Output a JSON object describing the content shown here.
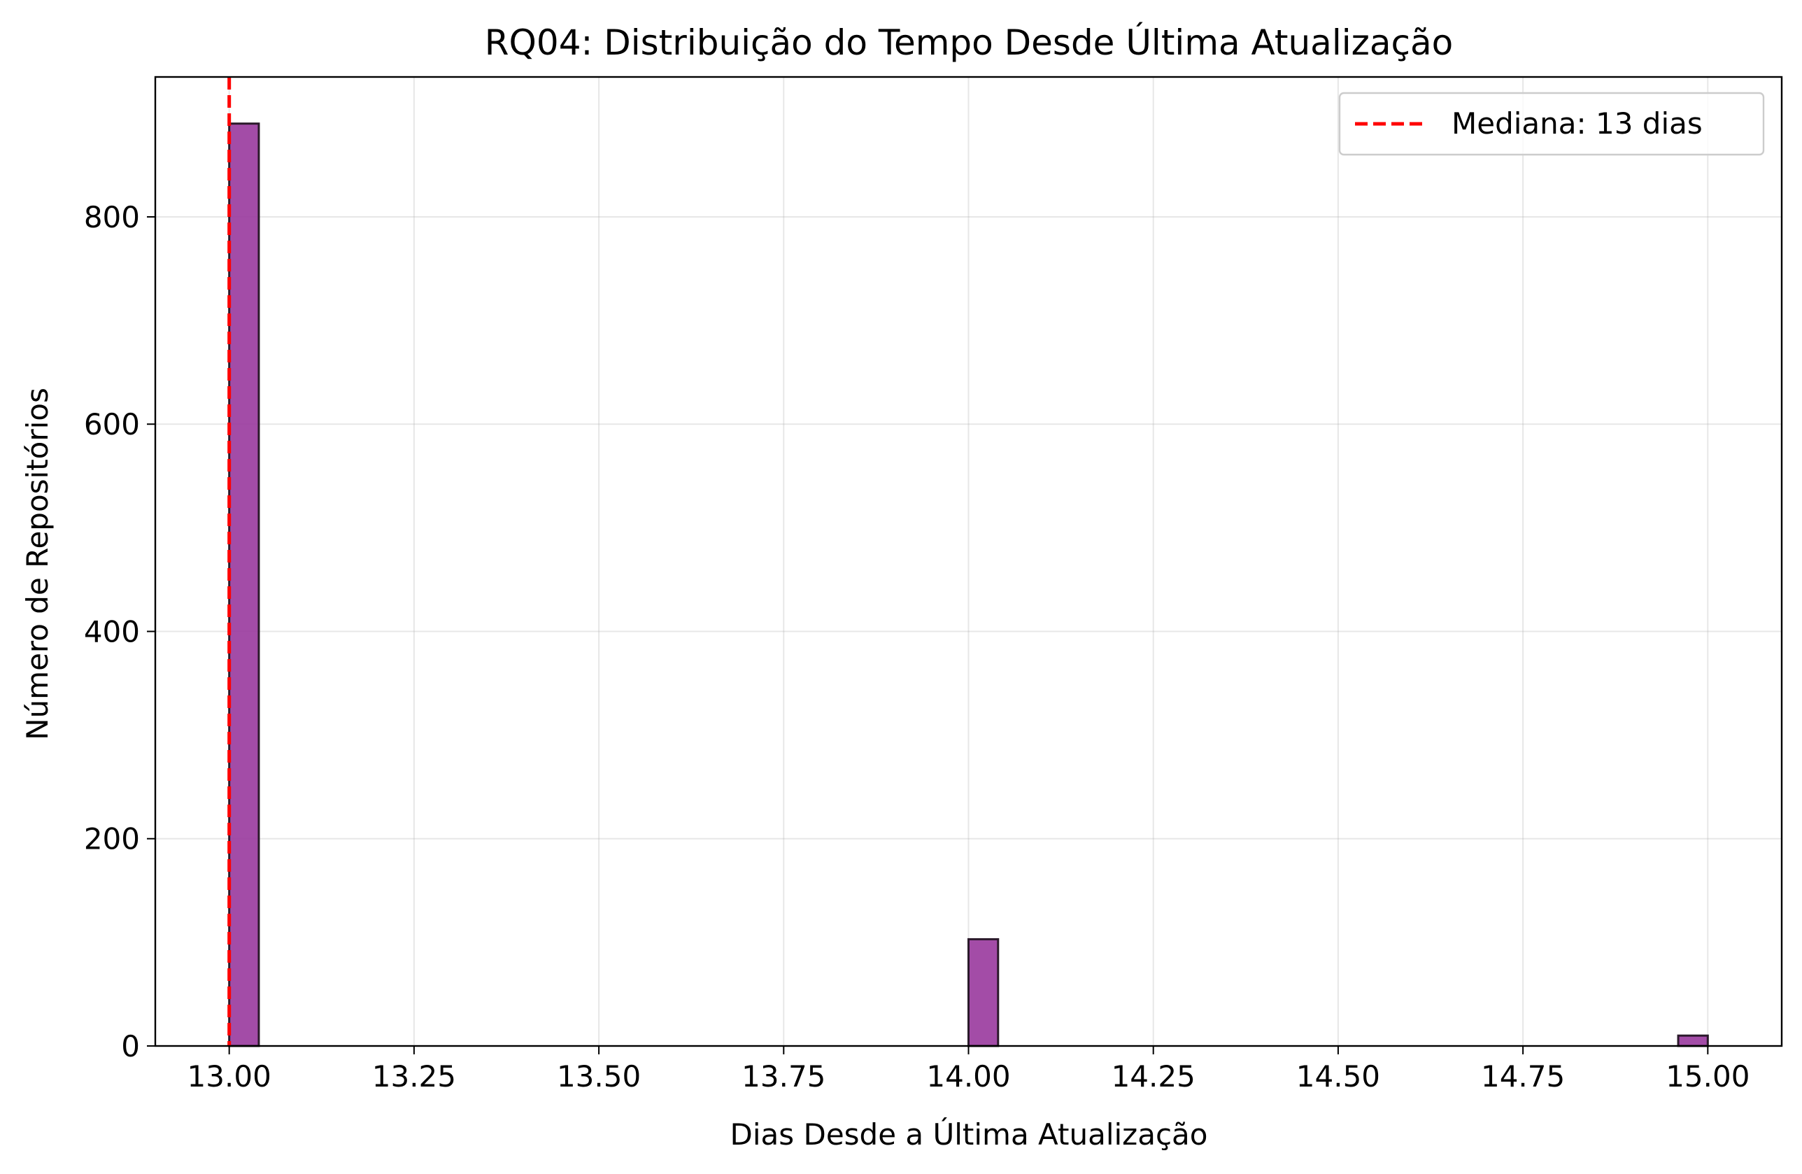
{
  "chart_data": {
    "type": "bar",
    "title": "RQ04: Distribuição do Tempo Desde Última Atualização",
    "xlabel": "Dias Desde a Última Atualização",
    "ylabel": "Número de Repositórios",
    "xlim": [
      12.9,
      15.1
    ],
    "ylim": [
      0,
      935
    ],
    "x_ticks": [
      13.0,
      13.25,
      13.5,
      13.75,
      14.0,
      14.25,
      14.5,
      14.75,
      15.0
    ],
    "x_tick_labels": [
      "13.00",
      "13.25",
      "13.50",
      "13.75",
      "14.00",
      "14.25",
      "14.50",
      "14.75",
      "15.00"
    ],
    "y_ticks": [
      0,
      200,
      400,
      600,
      800
    ],
    "y_tick_labels": [
      "0",
      "200",
      "400",
      "600",
      "800"
    ],
    "bin_width": 0.04,
    "bins": [
      {
        "x_start": 13.0,
        "x_end": 13.04,
        "count": 890
      },
      {
        "x_start": 14.0,
        "x_end": 14.04,
        "count": 103
      },
      {
        "x_start": 14.96,
        "x_end": 15.0,
        "count": 10
      }
    ],
    "median": {
      "value": 13,
      "label": "Mediana: 13 dias",
      "color": "#ff0000",
      "style": "dashed"
    },
    "bar_color": "#9b3d9f",
    "bar_edge_color": "#2b1a2b",
    "grid": true,
    "legend_position": "top-right"
  }
}
